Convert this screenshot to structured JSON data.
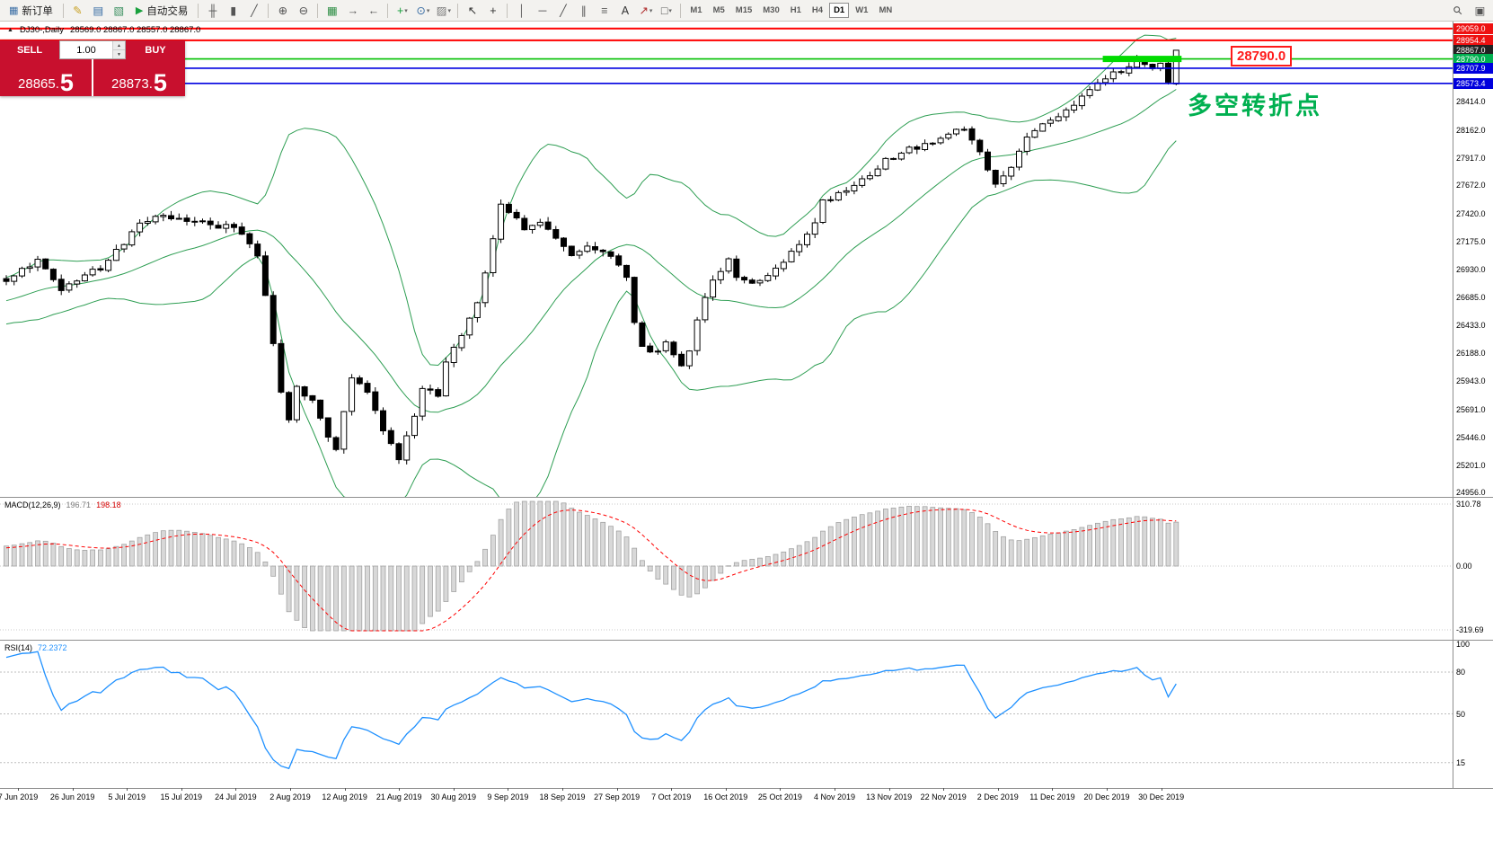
{
  "colors": {
    "sell_buy_red": "#c8102e",
    "hline_red": "#ff0000",
    "hline_green": "#00c000",
    "hline_blue": "#0000e0",
    "highlight_green": "#00dc00",
    "annotation_green": "#00b050",
    "bollinger_green": "#2e9e53",
    "macd_signal_red": "#ff0000",
    "macd_histogram_gray": "#d8d8d8",
    "rsi_blue": "#1e90ff",
    "bull_candle": "#ffffff",
    "bear_candle": "#000000"
  },
  "toolbar": {
    "groups": [
      {
        "items": [
          {
            "t": "btn",
            "name": "new-order-button",
            "icon": "new-order-icon",
            "label": "新订单"
          }
        ]
      },
      {
        "items": [
          {
            "t": "icon",
            "name": "metaeditor-icon"
          },
          {
            "t": "icon",
            "name": "new-chart-icon"
          },
          {
            "t": "icon",
            "name": "profiles-icon"
          },
          {
            "t": "btn",
            "name": "autotrade-button",
            "icon": "autotrade-icon",
            "label": "自动交易"
          }
        ]
      },
      {
        "items": [
          {
            "t": "icon",
            "name": "bar-chart-icon"
          },
          {
            "t": "icon",
            "name": "candlestick-icon"
          },
          {
            "t": "icon",
            "name": "line-chart-icon"
          }
        ]
      },
      {
        "items": [
          {
            "t": "icon",
            "name": "zoom-in-icon"
          },
          {
            "t": "icon",
            "name": "zoom-out-icon"
          }
        ]
      },
      {
        "items": [
          {
            "t": "icon",
            "name": "tile-windows-icon"
          },
          {
            "t": "icon",
            "name": "auto-scroll-icon"
          },
          {
            "t": "icon",
            "name": "chart-shift-icon"
          }
        ]
      },
      {
        "items": [
          {
            "t": "icon",
            "name": "indicators-icon",
            "caret": true
          },
          {
            "t": "icon",
            "name": "periods-icon",
            "caret": true
          },
          {
            "t": "icon",
            "name": "templates-icon",
            "caret": true
          }
        ]
      },
      {
        "items": [
          {
            "t": "icon",
            "name": "cursor-icon"
          },
          {
            "t": "icon",
            "name": "crosshair-icon"
          }
        ]
      },
      {
        "items": [
          {
            "t": "icon",
            "name": "vertical-line-icon"
          },
          {
            "t": "icon",
            "name": "horizontal-line-icon"
          },
          {
            "t": "icon",
            "name": "trendline-icon"
          },
          {
            "t": "icon",
            "name": "equidistant-channel-icon"
          },
          {
            "t": "icon",
            "name": "fibonacci-icon"
          },
          {
            "t": "icon",
            "name": "text-icon"
          },
          {
            "t": "icon",
            "name": "arrows-icon",
            "caret": true
          },
          {
            "t": "icon",
            "name": "shapes-icon",
            "caret": true
          }
        ]
      },
      {
        "items": "timeframes"
      }
    ],
    "timeframes": [
      "M1",
      "M5",
      "M15",
      "M30",
      "H1",
      "H4",
      "D1",
      "W1",
      "MN"
    ],
    "active_timeframe": "D1",
    "right_icons": [
      {
        "name": "search-icon"
      },
      {
        "name": "toolbox-icon"
      }
    ]
  },
  "chart_window": {
    "symbol_period": "DJ30-,Daily",
    "ohlc_text": "28569.0 28867.0 28557.0 28867.0"
  },
  "trade_panel": {
    "sell_label": "SELL",
    "buy_label": "BUY",
    "volume": "1.00",
    "sell_price_main": "28865.",
    "sell_price_big": "5",
    "buy_price_main": "28873.",
    "buy_price_big": "5"
  },
  "annotation": {
    "text": "多空转折点"
  },
  "price_callout": {
    "text": "28790.0"
  },
  "chart_data": {
    "type": "candlestick",
    "symbol": "DJ30-",
    "period": "Daily",
    "current_bar": {
      "open": 28569.0,
      "high": 28867.0,
      "low": 28557.0,
      "close": 28867.0
    },
    "bid": "28865.5",
    "ask": "28873.5",
    "bars": 150,
    "price_axis_labels": [
      "28414.0",
      "28162.0",
      "27917.0",
      "27672.0",
      "27420.0",
      "27175.0",
      "26930.0",
      "26685.0",
      "26433.0",
      "26188.0",
      "25943.0",
      "25691.0",
      "25446.0",
      "25201.0",
      "24956.0"
    ],
    "line_tags": [
      {
        "price": 29059.0,
        "label": "29059.0",
        "color": "#ee1111"
      },
      {
        "price": 28954.4,
        "label": "28954.4",
        "color": "#ee1111"
      },
      {
        "price": 28867.0,
        "label": "28867.0",
        "color": "#222222"
      },
      {
        "price": 28790.0,
        "label": "28790.0",
        "color": "#00b050"
      },
      {
        "price": 28707.9,
        "label": "28707.9",
        "color": "#0000dd"
      },
      {
        "price": 28573.4,
        "label": "28573.4",
        "color": "#0000dd"
      }
    ],
    "hlines": [
      {
        "price": 29059.0,
        "color": "#ff0000",
        "width": 2
      },
      {
        "price": 28954.4,
        "color": "#ff0000",
        "width": 2
      },
      {
        "price": 28790.0,
        "color": "#00c000",
        "width": 1.6
      },
      {
        "price": 28707.9,
        "color": "#0000e0",
        "width": 1.6
      },
      {
        "price": 28573.4,
        "color": "#0000e0",
        "width": 1.6
      }
    ],
    "highlight_segment": {
      "price": 28790.0,
      "color": "#00dc00"
    },
    "bollinger": {
      "period": 20,
      "deviation": 2
    },
    "approx_close_anchors": [
      [
        0,
        26820
      ],
      [
        4,
        27010
      ],
      [
        7,
        26760
      ],
      [
        12,
        26950
      ],
      [
        17,
        27330
      ],
      [
        20,
        27430
      ],
      [
        26,
        27310
      ],
      [
        29,
        27330
      ],
      [
        32,
        27050
      ],
      [
        33,
        26700
      ],
      [
        35,
        25850
      ],
      [
        36,
        25600
      ],
      [
        37,
        25900
      ],
      [
        39,
        25750
      ],
      [
        41,
        25450
      ],
      [
        42,
        25350
      ],
      [
        44,
        26000
      ],
      [
        46,
        25850
      ],
      [
        48,
        25500
      ],
      [
        50,
        25270
      ],
      [
        52,
        25650
      ],
      [
        53,
        25900
      ],
      [
        55,
        25800
      ],
      [
        56,
        26100
      ],
      [
        58,
        26350
      ],
      [
        60,
        26650
      ],
      [
        61,
        26900
      ],
      [
        63,
        27480
      ],
      [
        65,
        27400
      ],
      [
        66,
        27300
      ],
      [
        68,
        27350
      ],
      [
        70,
        27200
      ],
      [
        72,
        27050
      ],
      [
        74,
        27150
      ],
      [
        76,
        27100
      ],
      [
        78,
        26950
      ],
      [
        79,
        26850
      ],
      [
        80,
        26450
      ],
      [
        81,
        26250
      ],
      [
        83,
        26200
      ],
      [
        84,
        26300
      ],
      [
        86,
        26050
      ],
      [
        87,
        26200
      ],
      [
        88,
        26500
      ],
      [
        90,
        26850
      ],
      [
        92,
        27000
      ],
      [
        93,
        26850
      ],
      [
        95,
        26800
      ],
      [
        97,
        26900
      ],
      [
        99,
        27000
      ],
      [
        101,
        27120
      ],
      [
        103,
        27350
      ],
      [
        104,
        27550
      ],
      [
        106,
        27600
      ],
      [
        108,
        27650
      ],
      [
        110,
        27750
      ],
      [
        112,
        27900
      ],
      [
        114,
        27950
      ],
      [
        116,
        28000
      ],
      [
        118,
        28050
      ],
      [
        120,
        28150
      ],
      [
        122,
        28160
      ],
      [
        124,
        27950
      ],
      [
        126,
        27690
      ],
      [
        128,
        27850
      ],
      [
        130,
        28100
      ],
      [
        132,
        28200
      ],
      [
        134,
        28300
      ],
      [
        136,
        28400
      ],
      [
        138,
        28500
      ],
      [
        140,
        28620
      ],
      [
        142,
        28700
      ],
      [
        144,
        28780
      ],
      [
        146,
        28690
      ],
      [
        147,
        28750
      ],
      [
        148,
        28580
      ],
      [
        149,
        28867
      ]
    ],
    "macd": {
      "label": "MACD(12,26,9)",
      "value_main": "196.71",
      "value_signal": "198.18",
      "axis_labels": [
        "310.78",
        "0.00",
        "-319.69"
      ],
      "params": [
        12,
        26,
        9
      ]
    },
    "rsi": {
      "label": "RSI(14)",
      "value": "72.2372",
      "axis_labels": [
        "100",
        "80",
        "50",
        "15"
      ],
      "levels": [
        80,
        50,
        15
      ],
      "period": 14
    },
    "date_labels": [
      "7 Jun 2019",
      "26 Jun 2019",
      "5 Jul 2019",
      "15 Jul 2019",
      "24 Jul 2019",
      "2 Aug 2019",
      "12 Aug 2019",
      "21 Aug 2019",
      "30 Aug 2019",
      "9 Sep 2019",
      "18 Sep 2019",
      "27 Sep 2019",
      "7 Oct 2019",
      "16 Oct 2019",
      "25 Oct 2019",
      "4 Nov 2019",
      "13 Nov 2019",
      "22 Nov 2019",
      "2 Dec 2019",
      "11 Dec 2019",
      "20 Dec 2019",
      "30 Dec 2019"
    ]
  }
}
